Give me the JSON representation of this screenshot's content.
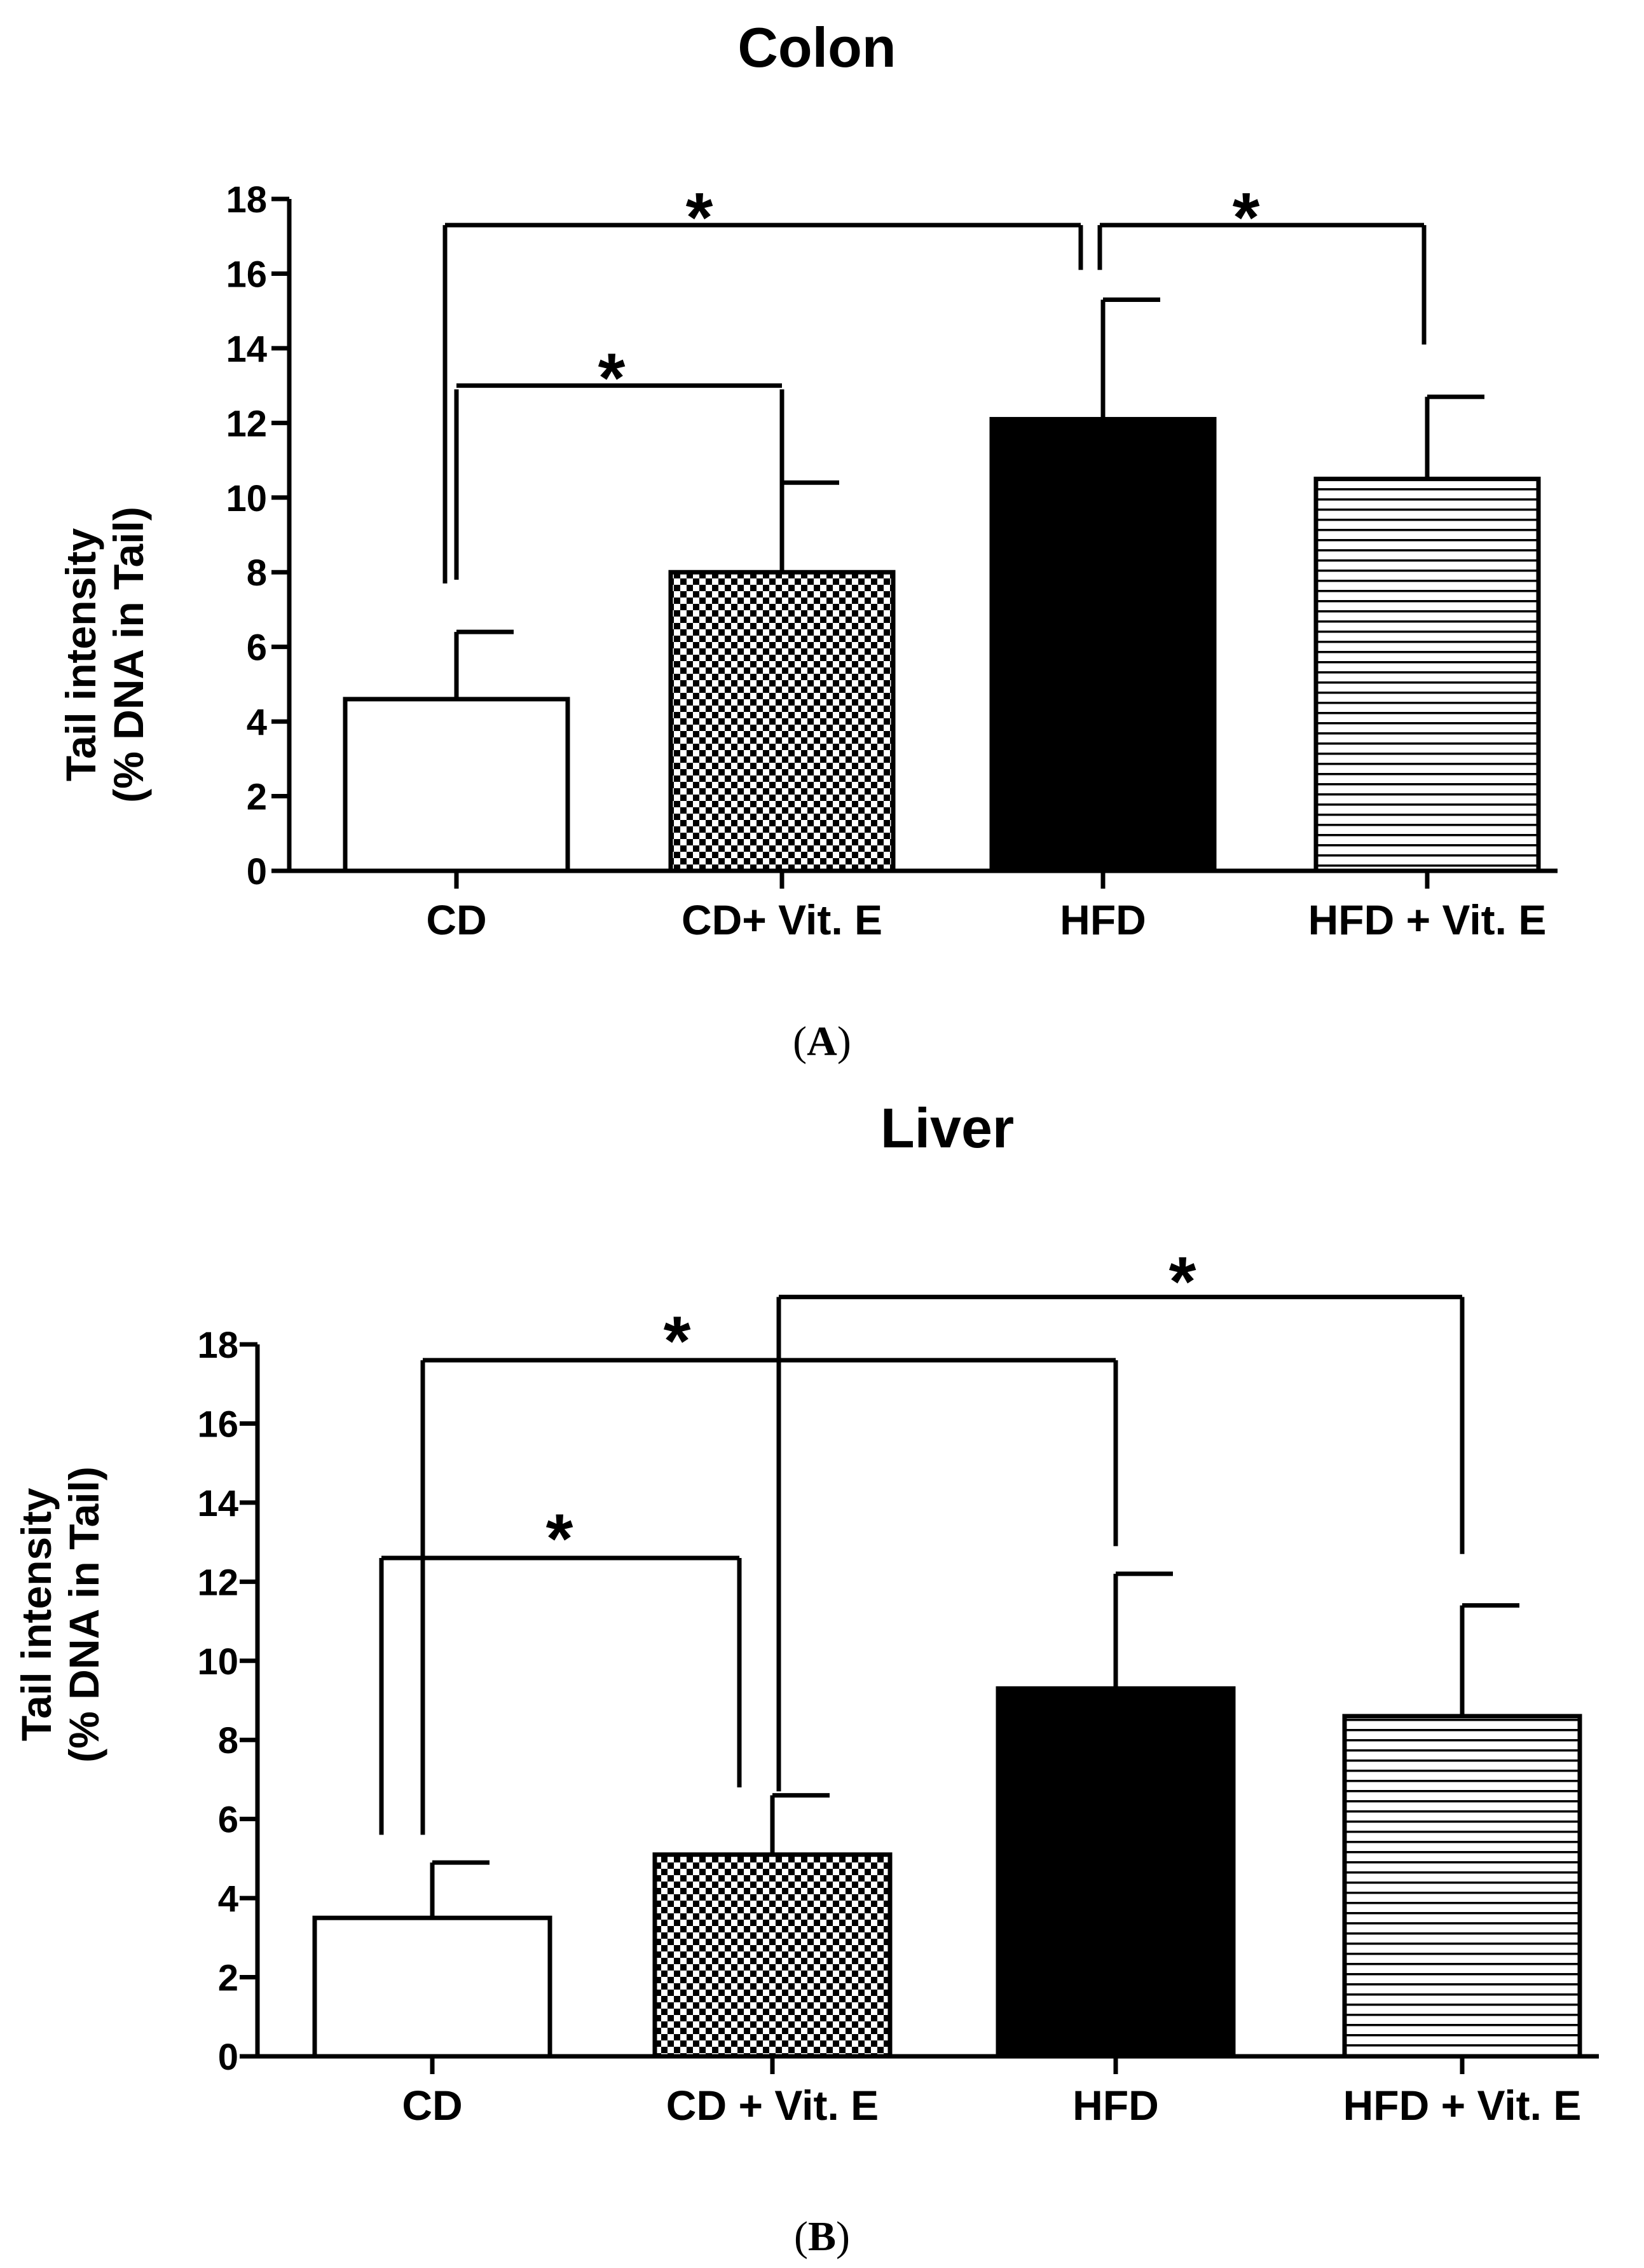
{
  "chart_data": [
    {
      "panel": "A",
      "type": "bar",
      "title": "Colon",
      "ylabel_line1": "Tail intensity",
      "ylabel_line2": "(% DNA in Tail)",
      "xlabel": "",
      "ylim": [
        0,
        18
      ],
      "yticks": [
        0,
        2,
        4,
        6,
        8,
        10,
        12,
        14,
        16,
        18
      ],
      "categories": [
        "CD",
        "CD+ Vit. E",
        "HFD",
        "HFD + Vit. E"
      ],
      "values": [
        4.6,
        8.0,
        12.1,
        10.5
      ],
      "errors": [
        1.8,
        2.4,
        3.2,
        2.2
      ],
      "fills": [
        "white",
        "checker",
        "black",
        "hstripes"
      ],
      "significance": [
        {
          "from": 0,
          "to": 1,
          "label": "*",
          "y": 13.0
        },
        {
          "from": 0,
          "to": 2,
          "label": "*",
          "y": 17.3
        },
        {
          "from": 2,
          "to": 3,
          "label": "*",
          "y": 17.3
        }
      ]
    },
    {
      "panel": "B",
      "type": "bar",
      "title": "Liver",
      "ylabel_line1": "Tail intensity",
      "ylabel_line2": "(% DNA in Tail)",
      "xlabel": "",
      "ylim": [
        0,
        18
      ],
      "yticks": [
        0,
        2,
        4,
        6,
        8,
        10,
        12,
        14,
        16,
        18
      ],
      "categories": [
        "CD",
        "CD + Vit. E",
        "HFD",
        "HFD + Vit. E"
      ],
      "values": [
        3.5,
        5.1,
        9.3,
        8.6
      ],
      "errors": [
        1.4,
        1.5,
        2.9,
        2.8
      ],
      "fills": [
        "white",
        "checker",
        "black",
        "hstripes"
      ],
      "significance": [
        {
          "from": 0,
          "to": 1,
          "label": "*",
          "y": 12.6
        },
        {
          "from": 0,
          "to": 2,
          "label": "*",
          "y": 17.6
        },
        {
          "from": 1,
          "to": 3,
          "label": "*",
          "y": 19.2
        }
      ]
    }
  ],
  "panels": {
    "a": {
      "label_open": "(",
      "label_letter": "A",
      "label_close": ")"
    },
    "b": {
      "label_open": "(",
      "label_letter": "B",
      "label_close": ")"
    }
  }
}
